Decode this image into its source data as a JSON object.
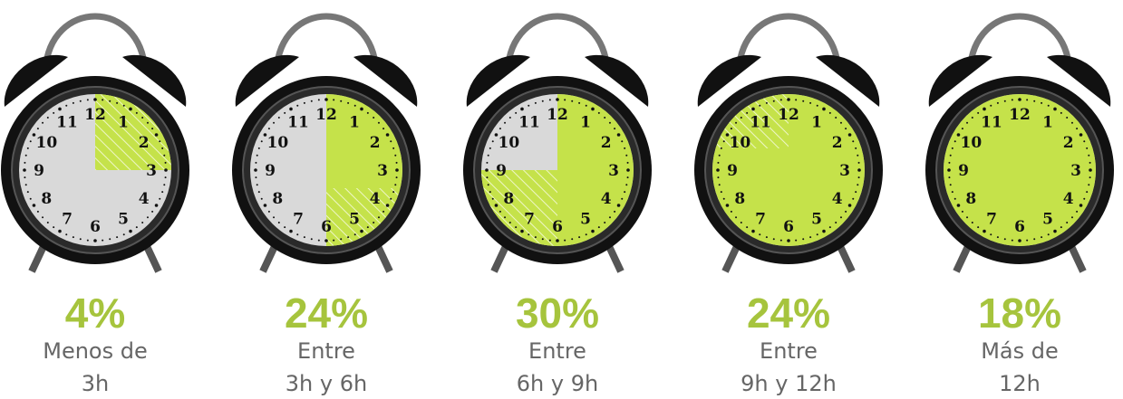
{
  "items": [
    {
      "percent": "4%",
      "lines": [
        "Menos de",
        "3h"
      ]
    },
    {
      "percent": "24%",
      "lines": [
        "Entre",
        "3h y 6h"
      ]
    },
    {
      "percent": "30%",
      "lines": [
        "Entre",
        "6h y 9h"
      ]
    },
    {
      "percent": "24%",
      "lines": [
        "Entre",
        "9h y 12h"
      ]
    },
    {
      "percent": "18%",
      "lines": [
        "Más de",
        "12h"
      ]
    }
  ]
}
